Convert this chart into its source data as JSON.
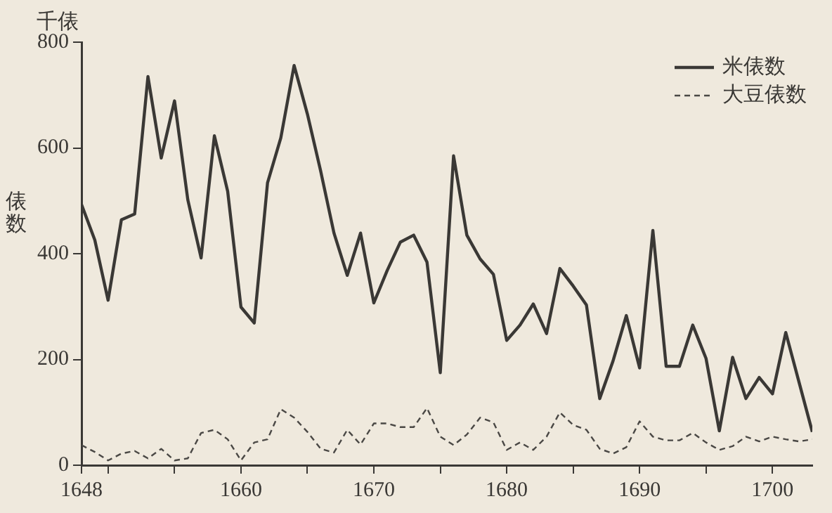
{
  "chart_data": {
    "type": "line",
    "ylabel": "俵数",
    "annotations": [
      "千俵"
    ],
    "x": [
      1648,
      1649,
      1650,
      1651,
      1652,
      1653,
      1654,
      1655,
      1656,
      1657,
      1658,
      1659,
      1660,
      1661,
      1662,
      1663,
      1664,
      1665,
      1666,
      1667,
      1668,
      1669,
      1670,
      1671,
      1672,
      1673,
      1674,
      1675,
      1676,
      1677,
      1678,
      1679,
      1680,
      1681,
      1682,
      1683,
      1684,
      1685,
      1686,
      1687,
      1688,
      1689,
      1690,
      1691,
      1692,
      1693,
      1694,
      1695,
      1696,
      1697,
      1698,
      1699,
      1700,
      1701,
      1702,
      1703
    ],
    "series": [
      {
        "name": "米俵数",
        "color": "#3a3835",
        "line_style": "solid",
        "values": [
          493,
          426,
          312,
          464,
          475,
          735,
          581,
          689,
          502,
          392,
          623,
          518,
          299,
          269,
          534,
          619,
          756,
          664,
          556,
          439,
          359,
          439,
          307,
          368,
          422,
          435,
          384,
          175,
          585,
          435,
          390,
          361,
          236,
          265,
          305,
          249,
          372,
          339,
          303,
          126,
          197,
          283,
          184,
          444,
          187,
          187,
          265,
          202,
          65,
          204,
          126,
          166,
          135,
          251,
          157,
          63
        ]
      },
      {
        "name": "大豆俵数",
        "color": "#4a4845",
        "line_style": "dashed",
        "values": [
          38,
          25,
          9,
          22,
          27,
          13,
          31,
          9,
          13,
          61,
          67,
          49,
          9,
          43,
          49,
          106,
          90,
          63,
          31,
          24,
          67,
          39,
          79,
          79,
          72,
          72,
          108,
          54,
          38,
          58,
          90,
          81,
          29,
          43,
          29,
          54,
          100,
          76,
          67,
          31,
          22,
          34,
          83,
          54,
          47,
          47,
          61,
          43,
          29,
          36,
          54,
          45,
          54,
          49,
          45,
          49
        ]
      }
    ],
    "xlim": [
      1648,
      1703
    ],
    "xticks": [
      1648,
      {
        "value": 1650,
        "label": null
      },
      {
        "value": 1655,
        "label": null
      },
      1660,
      {
        "value": 1665,
        "label": null
      },
      1670,
      {
        "value": 1675,
        "label": null
      },
      1680,
      {
        "value": 1685,
        "label": null
      },
      1690,
      {
        "value": 1695,
        "label": null
      },
      1700
    ],
    "ylim": [
      0,
      800
    ],
    "yticks": [
      0,
      200,
      400,
      600,
      800
    ],
    "grid": false,
    "legend": "top right",
    "marker": "none"
  }
}
